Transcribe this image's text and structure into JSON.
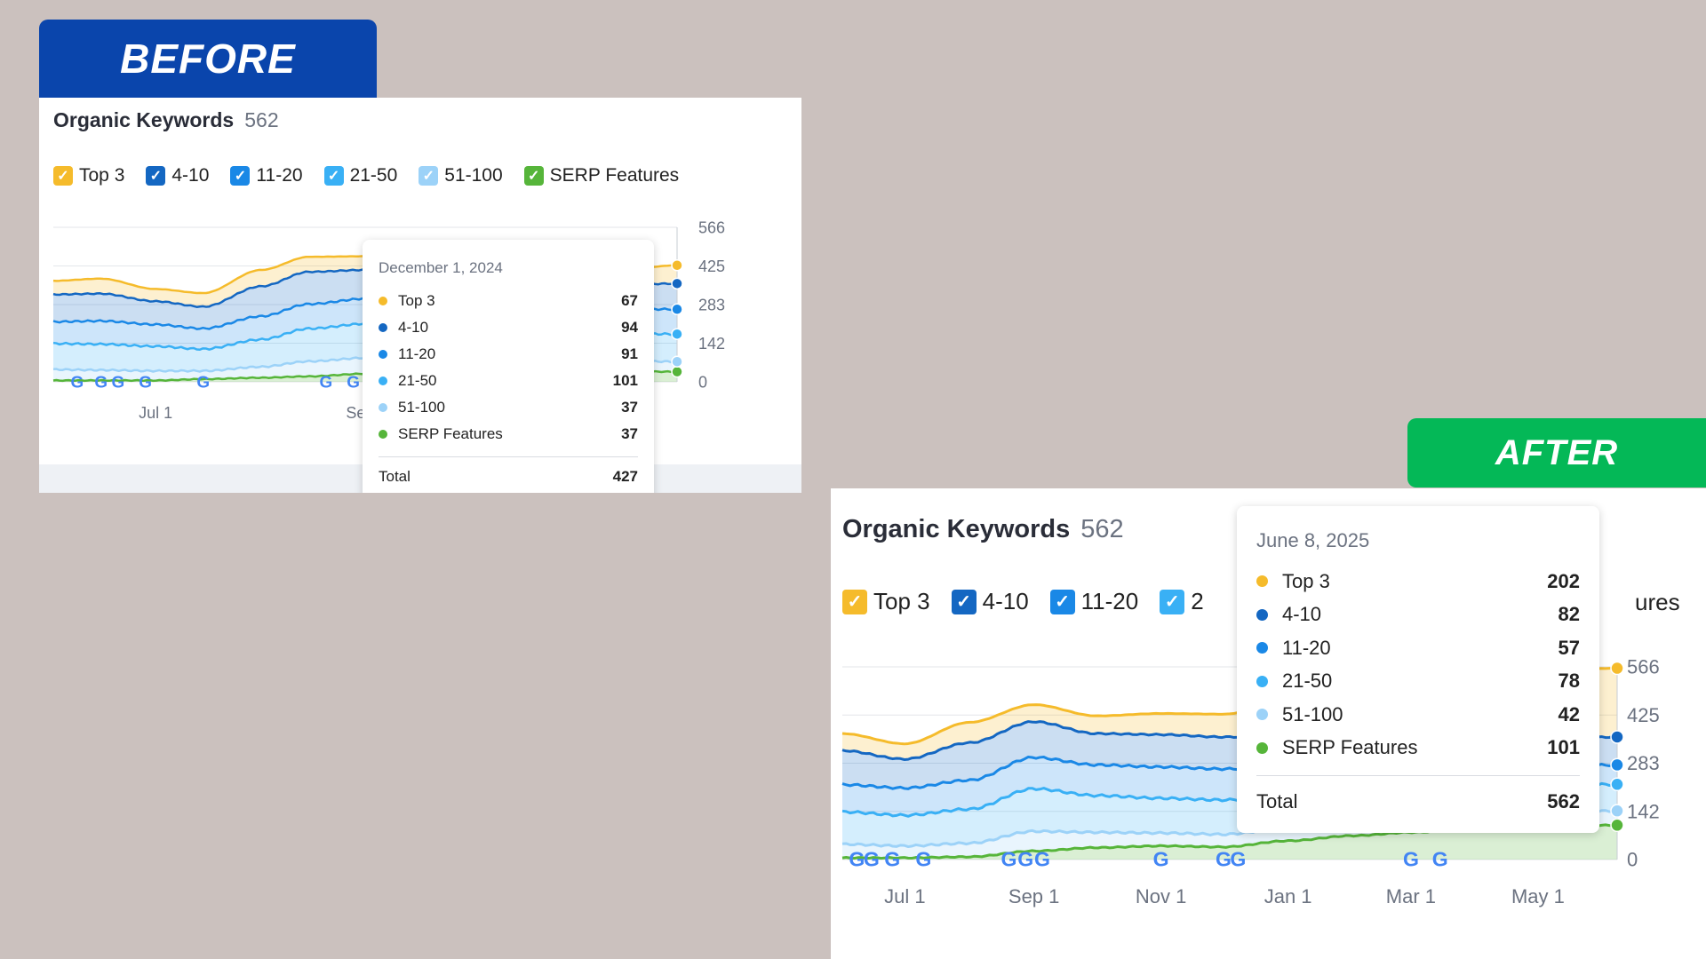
{
  "banners": {
    "before": "BEFORE",
    "after": "AFTER"
  },
  "panels": {
    "before": {
      "title": "Organic Keywords",
      "count": "562",
      "legend": [
        {
          "label": "Top 3",
          "color": "#f5bb2b"
        },
        {
          "label": "4-10",
          "color": "#1467c2"
        },
        {
          "label": "11-20",
          "color": "#1a88e6"
        },
        {
          "label": "21-50",
          "color": "#39b0f5"
        },
        {
          "label": "51-100",
          "color": "#9cd2f8"
        },
        {
          "label": "SERP Features",
          "color": "#56b53a"
        }
      ],
      "tooltip": {
        "date": "December 1, 2024",
        "rows": [
          {
            "label": "Top 3",
            "value": "67",
            "color": "#f5bb2b"
          },
          {
            "label": "4-10",
            "value": "94",
            "color": "#1467c2"
          },
          {
            "label": "11-20",
            "value": "91",
            "color": "#1a88e6"
          },
          {
            "label": "21-50",
            "value": "101",
            "color": "#39b0f5"
          },
          {
            "label": "51-100",
            "value": "37",
            "color": "#9cd2f8"
          },
          {
            "label": "SERP Features",
            "value": "37",
            "color": "#56b53a"
          }
        ],
        "total_label": "Total",
        "total_value": "427"
      }
    },
    "after": {
      "title": "Organic Keywords",
      "count": "562",
      "legend": [
        {
          "label": "Top 3",
          "color": "#f5bb2b"
        },
        {
          "label": "4-10",
          "color": "#1467c2"
        },
        {
          "label": "11-20",
          "color": "#1a88e6"
        },
        {
          "label": "2",
          "color": "#39b0f5"
        }
      ],
      "legend_trailing": "ures",
      "tooltip": {
        "date": "June 8, 2025",
        "rows": [
          {
            "label": "Top 3",
            "value": "202",
            "color": "#f5bb2b"
          },
          {
            "label": "4-10",
            "value": "82",
            "color": "#1467c2"
          },
          {
            "label": "11-20",
            "value": "57",
            "color": "#1a88e6"
          },
          {
            "label": "21-50",
            "value": "78",
            "color": "#39b0f5"
          },
          {
            "label": "51-100",
            "value": "42",
            "color": "#9cd2f8"
          },
          {
            "label": "SERP Features",
            "value": "101",
            "color": "#56b53a"
          }
        ],
        "total_label": "Total",
        "total_value": "562"
      }
    }
  },
  "chart_data": [
    {
      "type": "area",
      "stacked": true,
      "yticks": [
        "566",
        "425",
        "283",
        "142",
        "0"
      ],
      "ylim": [
        0,
        566
      ],
      "xticks": [
        "Jul 1",
        "Sep 1",
        "Nov 1"
      ],
      "x": [
        "2024-06-01",
        "2024-06-15",
        "2024-07-01",
        "2024-07-15",
        "2024-08-01",
        "2024-08-15",
        "2024-09-01",
        "2024-09-15",
        "2024-10-01",
        "2024-10-15",
        "2024-11-01",
        "2024-11-15",
        "2024-12-01"
      ],
      "series": [
        {
          "name": "SERP Features",
          "color": "#56b53a",
          "values": [
            5,
            5,
            5,
            10,
            15,
            20,
            30,
            30,
            33,
            35,
            37,
            38,
            37
          ]
        },
        {
          "name": "51-100",
          "color": "#9cd2f8",
          "values": [
            40,
            38,
            35,
            30,
            40,
            55,
            58,
            52,
            45,
            40,
            38,
            38,
            37
          ]
        },
        {
          "name": "21-50",
          "color": "#39b0f5",
          "values": [
            95,
            95,
            90,
            80,
            100,
            120,
            125,
            115,
            108,
            100,
            102,
            100,
            101
          ]
        },
        {
          "name": "11-20",
          "color": "#1a88e6",
          "values": [
            80,
            85,
            80,
            75,
            85,
            90,
            92,
            88,
            90,
            88,
            92,
            90,
            91
          ]
        },
        {
          "name": "4-10",
          "color": "#1467c2",
          "values": [
            100,
            100,
            85,
            80,
            110,
            118,
            105,
            95,
            92,
            92,
            95,
            90,
            94
          ]
        },
        {
          "name": "Top 3",
          "color": "#f5bb2b",
          "values": [
            50,
            55,
            45,
            50,
            60,
            55,
            50,
            50,
            52,
            55,
            62,
            55,
            67
          ]
        }
      ],
      "serp_marker_dates": [
        "2024-06-08",
        "2024-06-15",
        "2024-06-20",
        "2024-06-28",
        "2024-07-15",
        "2024-08-20",
        "2024-08-28",
        "2024-09-05",
        "2024-11-01"
      ],
      "cursor_date": "2024-12-01"
    },
    {
      "type": "area",
      "stacked": true,
      "yticks": [
        "566",
        "425",
        "283",
        "142",
        "0"
      ],
      "ylim": [
        0,
        566
      ],
      "xticks": [
        "Jul 1",
        "Sep 1",
        "Nov 1",
        "Jan 1",
        "Mar 1",
        "May 1"
      ],
      "x": [
        "2024-06-01",
        "2024-07-01",
        "2024-08-01",
        "2024-09-01",
        "2024-10-01",
        "2024-11-01",
        "2024-12-01",
        "2025-01-01",
        "2025-02-01",
        "2025-03-01",
        "2025-04-01",
        "2025-05-01",
        "2025-06-08"
      ],
      "series": [
        {
          "name": "SERP Features",
          "color": "#56b53a",
          "values": [
            5,
            5,
            8,
            25,
            35,
            40,
            37,
            55,
            70,
            80,
            90,
            95,
            101
          ]
        },
        {
          "name": "51-100",
          "color": "#9cd2f8",
          "values": [
            40,
            35,
            40,
            58,
            45,
            38,
            37,
            38,
            40,
            40,
            41,
            42,
            42
          ]
        },
        {
          "name": "21-50",
          "color": "#39b0f5",
          "values": [
            95,
            90,
            100,
            125,
            108,
            102,
            101,
            95,
            90,
            85,
            80,
            78,
            78
          ]
        },
        {
          "name": "11-20",
          "color": "#1a88e6",
          "values": [
            80,
            80,
            85,
            92,
            90,
            92,
            91,
            85,
            75,
            68,
            62,
            58,
            57
          ]
        },
        {
          "name": "4-10",
          "color": "#1467c2",
          "values": [
            100,
            85,
            110,
            105,
            92,
            95,
            94,
            90,
            88,
            86,
            84,
            82,
            82
          ]
        },
        {
          "name": "Top 3",
          "color": "#f5bb2b",
          "values": [
            50,
            45,
            60,
            50,
            52,
            62,
            67,
            100,
            140,
            170,
            185,
            198,
            202
          ]
        }
      ],
      "serp_marker_dates": [
        "2024-06-08",
        "2024-06-15",
        "2024-06-25",
        "2024-07-10",
        "2024-08-20",
        "2024-08-28",
        "2024-09-05",
        "2024-11-01",
        "2024-12-01",
        "2024-12-08",
        "2025-03-01",
        "2025-03-15"
      ],
      "cursor_date": "2025-06-08"
    }
  ]
}
